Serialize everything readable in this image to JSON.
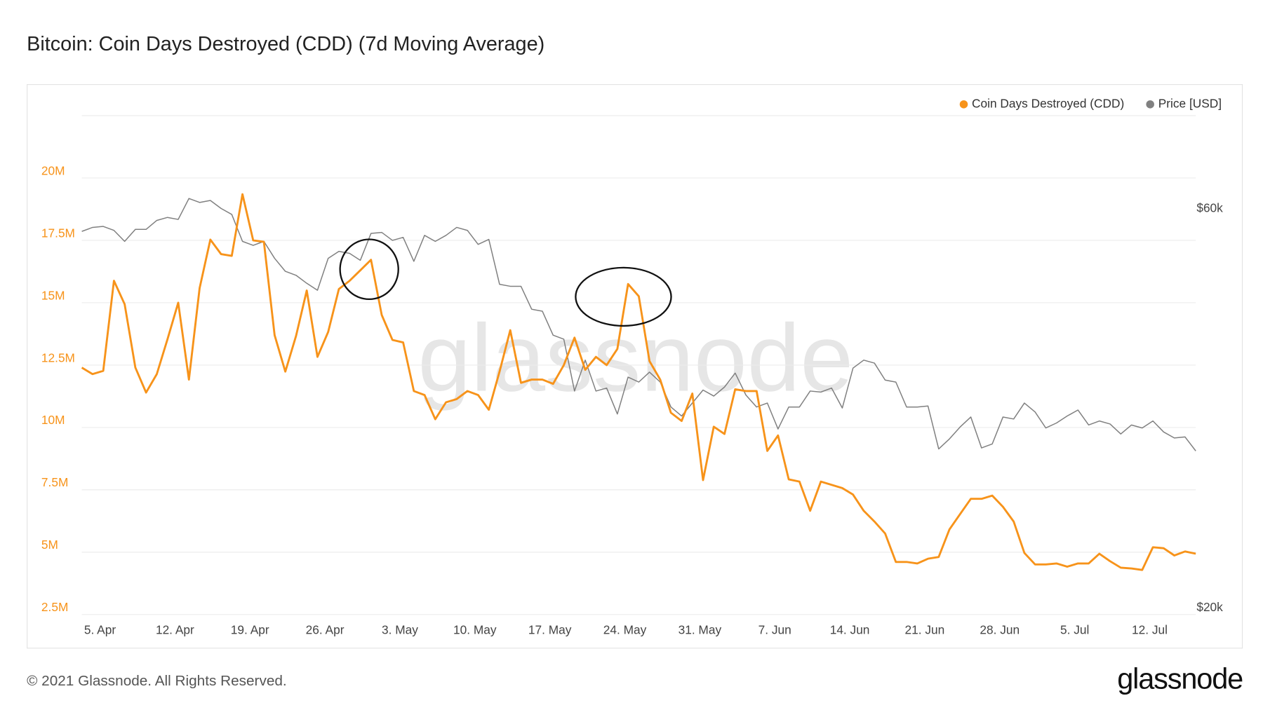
{
  "chart_data": {
    "type": "line",
    "title": "Bitcoin: Coin Days Destroyed (CDD) (7d Moving Average)",
    "watermark": "glassnode",
    "categories": [
      null,
      null,
      "5. Apr",
      null,
      null,
      null,
      null,
      null,
      null,
      "12. Apr",
      null,
      null,
      null,
      null,
      null,
      null,
      "19. Apr",
      null,
      null,
      null,
      null,
      null,
      null,
      "26. Apr",
      null,
      null,
      null,
      null,
      null,
      null,
      "3. May",
      null,
      null,
      null,
      null,
      null,
      null,
      "10. May",
      null,
      null,
      null,
      null,
      null,
      null,
      "17. May",
      null,
      null,
      null,
      null,
      null,
      null,
      "24. May",
      null,
      null,
      null,
      null,
      null,
      null,
      "31. May",
      null,
      null,
      null,
      null,
      null,
      null,
      "7. Jun",
      null,
      null,
      null,
      null,
      null,
      null,
      "14. Jun",
      null,
      null,
      null,
      null,
      null,
      null,
      "21. Jun",
      null,
      null,
      null,
      null,
      null,
      null,
      "28. Jun",
      null,
      null,
      null,
      null,
      null,
      null,
      "5. Jul",
      null,
      null,
      null,
      null,
      null,
      null,
      "12. Jul",
      null,
      null,
      null,
      null
    ],
    "series": [
      {
        "name": "Coin Days Destroyed (CDD)",
        "color": "#f7931a",
        "axis": "y",
        "values": [
          12.4,
          12.14,
          12.27,
          15.88,
          14.94,
          12.4,
          11.4,
          12.14,
          13.54,
          15.0,
          11.92,
          15.59,
          17.53,
          16.95,
          16.88,
          19.35,
          17.5,
          17.44,
          13.7,
          12.24,
          13.67,
          15.49,
          12.83,
          13.83,
          15.55,
          15.88,
          16.3,
          16.72,
          14.51,
          13.51,
          13.41,
          11.46,
          11.3,
          10.33,
          11.01,
          11.14,
          11.46,
          11.3,
          10.71,
          12.24,
          13.9,
          11.79,
          11.92,
          11.92,
          11.75,
          12.5,
          13.6,
          12.31,
          12.83,
          12.5,
          13.15,
          15.75,
          15.26,
          12.66,
          11.92,
          10.59,
          10.26,
          11.36,
          7.89,
          10.03,
          9.74,
          11.53,
          11.46,
          11.46,
          9.06,
          9.68,
          7.92,
          7.83,
          6.66,
          7.83,
          7.7,
          7.57,
          7.31,
          6.66,
          6.23,
          5.75,
          4.61,
          4.61,
          4.55,
          4.74,
          4.81,
          5.91,
          6.53,
          7.14,
          7.14,
          7.27,
          6.82,
          6.23,
          4.97,
          4.51,
          4.51,
          4.55,
          4.42,
          4.55,
          4.55,
          4.94,
          4.64,
          4.38,
          4.35,
          4.29,
          5.2,
          5.16,
          4.87,
          5.03,
          4.94
        ]
      },
      {
        "name": "Price [USD]",
        "color": "#808080",
        "axis": "y2",
        "values": [
          58400,
          58800,
          58900,
          58500,
          57400,
          58600,
          58600,
          59500,
          59800,
          59600,
          61700,
          61300,
          61500,
          60700,
          60100,
          57400,
          57000,
          57400,
          55700,
          54400,
          54000,
          53200,
          52500,
          55700,
          56400,
          56200,
          55500,
          58200,
          58300,
          57500,
          57800,
          55400,
          58000,
          57400,
          58000,
          58800,
          58500,
          57100,
          57600,
          53100,
          52900,
          52900,
          50600,
          50400,
          48000,
          47600,
          42400,
          45500,
          42400,
          42700,
          40100,
          43800,
          43300,
          44300,
          43300,
          40800,
          39900,
          41200,
          42500,
          41900,
          42800,
          44200,
          42000,
          40800,
          41200,
          38600,
          40800,
          40800,
          42400,
          42300,
          42700,
          40700,
          44700,
          45500,
          45200,
          43500,
          43300,
          40800,
          40800,
          40900,
          36600,
          37600,
          38800,
          39800,
          36700,
          37100,
          39800,
          39600,
          41200,
          40300,
          38700,
          39200,
          39900,
          40500,
          39000,
          39400,
          39100,
          38100,
          39000,
          38700,
          39400,
          38300,
          37700,
          37800,
          36400
        ]
      }
    ],
    "ylim": [
      2.5,
      22.5
    ],
    "yticks": [
      {
        "value": 2.5,
        "label": "2.5M"
      },
      {
        "value": 5,
        "label": "5M"
      },
      {
        "value": 7.5,
        "label": "7.5M"
      },
      {
        "value": 10,
        "label": "10M"
      },
      {
        "value": 12.5,
        "label": "12.5M"
      },
      {
        "value": 15,
        "label": "15M"
      },
      {
        "value": 17.5,
        "label": "17.5M"
      },
      {
        "value": 20,
        "label": "20M"
      }
    ],
    "y2lim": [
      20000,
      70000
    ],
    "y2ticks": [
      {
        "value": 20000,
        "label": "$20k"
      },
      {
        "value": 60000,
        "label": "$60k"
      }
    ],
    "grid": true,
    "legend": "top-right"
  },
  "footer": "© 2021 Glassnode. All Rights Reserved.",
  "logo": "glassnode"
}
